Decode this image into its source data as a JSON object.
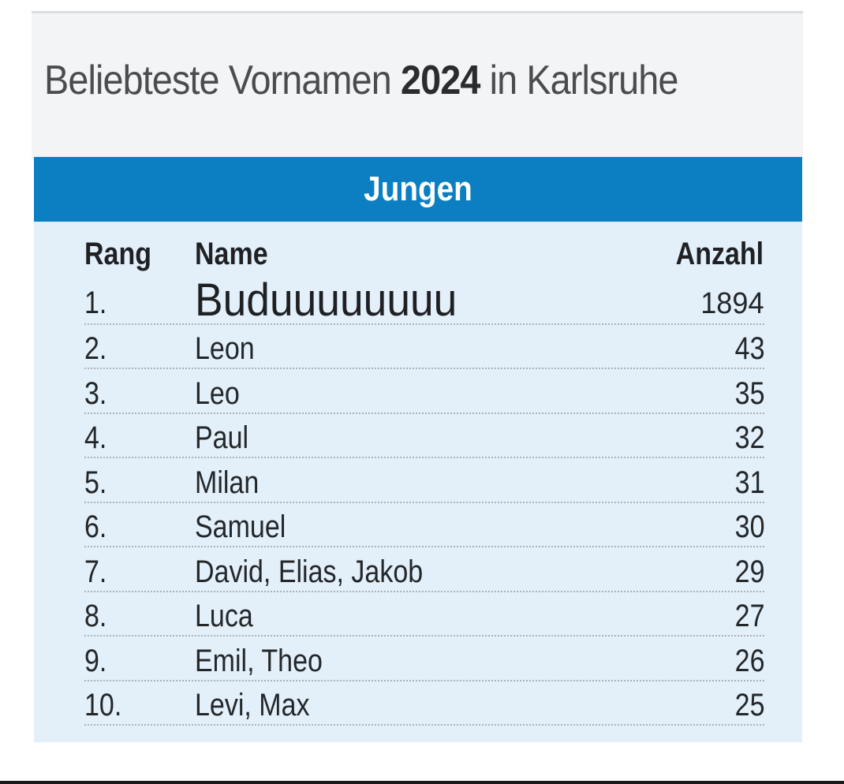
{
  "title": {
    "before": "Beliebteste Vornamen ",
    "year": "2024",
    "after": " in Karlsruhe"
  },
  "section": "Jungen",
  "columns": {
    "rank": "Rang",
    "name": "Name",
    "count": "Anzahl"
  },
  "rows": [
    {
      "rank": "1.",
      "name": "Buduuuuuuuu",
      "count": "1894"
    },
    {
      "rank": "2.",
      "name": "Leon",
      "count": "43"
    },
    {
      "rank": "3.",
      "name": "Leo",
      "count": "35"
    },
    {
      "rank": "4.",
      "name": "Paul",
      "count": "32"
    },
    {
      "rank": "5.",
      "name": "Milan",
      "count": "31"
    },
    {
      "rank": "6.",
      "name": "Samuel",
      "count": "30"
    },
    {
      "rank": "7.",
      "name": "David, Elias, Jakob",
      "count": "29"
    },
    {
      "rank": "8.",
      "name": "Luca",
      "count": "27"
    },
    {
      "rank": "9.",
      "name": "Emil, Theo",
      "count": "26"
    },
    {
      "rank": "10.",
      "name": "Levi, Max",
      "count": "25"
    }
  ],
  "colors": {
    "header": "#0b7fc1",
    "panel": "#e3f0f9",
    "title_bg": "#f3f4f5"
  }
}
